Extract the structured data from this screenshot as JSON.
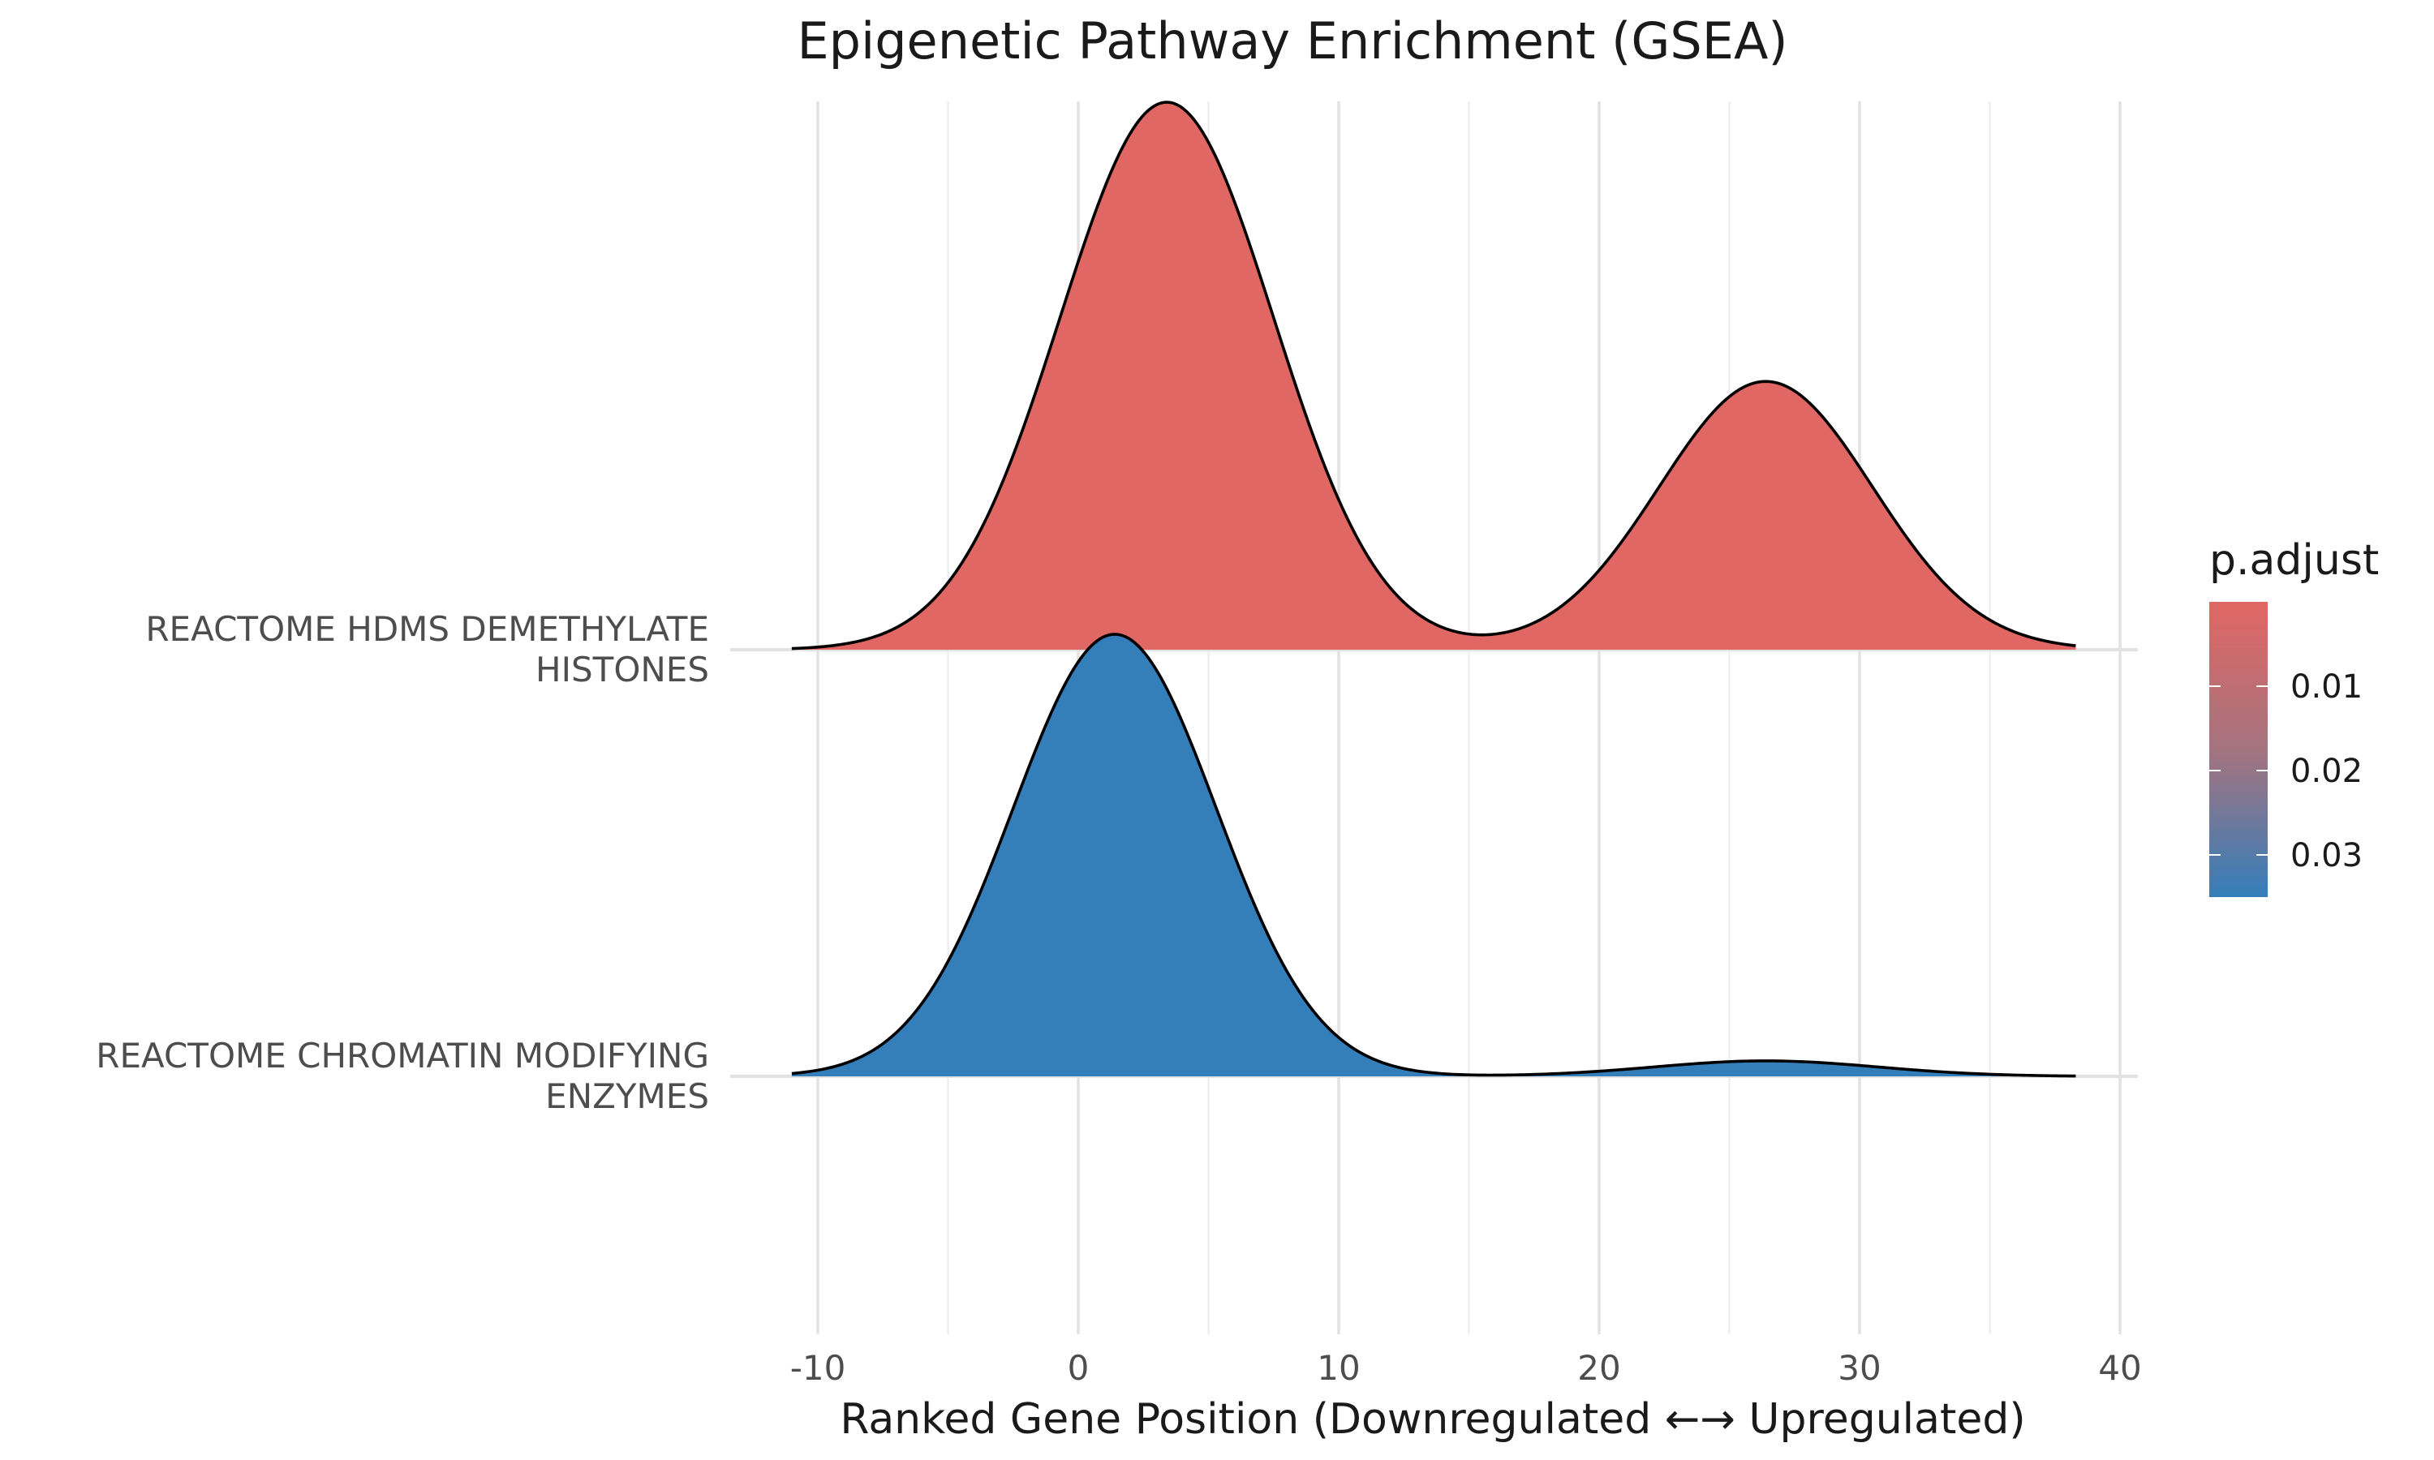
{
  "chart_data": {
    "type": "ridgeline",
    "title": "Epigenetic Pathway Enrichment (GSEA)",
    "xlabel": "Ranked Gene Position (Downregulated ←→ Upregulated)",
    "ylabel": "",
    "xlim": [
      -13,
      41
    ],
    "x_ticks": [
      -10,
      0,
      10,
      20,
      30,
      40
    ],
    "x_tick_labels": [
      "-10",
      "0",
      "10",
      "20",
      "30",
      "40"
    ],
    "x_minor_ticks": [
      -5,
      5,
      15,
      25,
      35
    ],
    "grid": true,
    "legend": {
      "title": "p.adjust",
      "position": "right",
      "type": "colorbar",
      "ticks": [
        0.01,
        0.02,
        0.03
      ],
      "tick_labels": [
        "0.01",
        "0.02",
        "0.03"
      ],
      "range": [
        0.0,
        0.035
      ],
      "low_color": "#E06763",
      "high_color": "#347EBA"
    },
    "series": [
      {
        "name": "REACTOME HDMS DEMETHYLATE HISTONES",
        "label_lines": [
          "REACTOME HDMS DEMETHYLATE",
          "HISTONES"
        ],
        "p_adjust": 0.0,
        "fill": "#E06763",
        "x_range": [
          -11,
          38.3
        ],
        "components": [
          {
            "weight": 1.0,
            "mean": 3.4,
            "sd": 4.1
          },
          {
            "weight": 0.49,
            "mean": 26.4,
            "sd": 4.1
          }
        ]
      },
      {
        "name": "REACTOME CHROMATIN MODIFYING ENZYMES",
        "label_lines": [
          "REACTOME CHROMATIN MODIFYING",
          "ENZYMES"
        ],
        "p_adjust": 0.035,
        "fill": "#347EBA",
        "x_range": [
          -11,
          38.3
        ],
        "components": [
          {
            "weight": 1.0,
            "mean": 1.4,
            "sd": 3.9
          },
          {
            "weight": 0.035,
            "mean": 26.4,
            "sd": 4.3
          }
        ]
      }
    ]
  }
}
